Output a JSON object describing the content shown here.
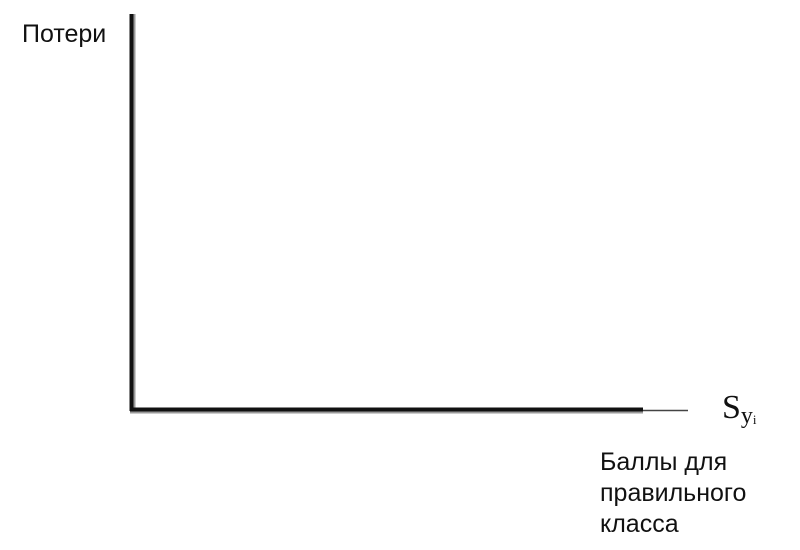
{
  "chart_data": {
    "type": "line",
    "ylabel": "Потери",
    "xlabel_lines": [
      "Баллы для",
      "правильного",
      "класса"
    ],
    "x_symbol": {
      "main": "S",
      "sub": "y",
      "subsub": "i"
    },
    "series": [],
    "grid": false,
    "legend": "none",
    "colors": {
      "axis": "#111111",
      "axis_shadow": "#9a9a9a",
      "axis_extension": "#444444",
      "text": "#111111"
    }
  }
}
